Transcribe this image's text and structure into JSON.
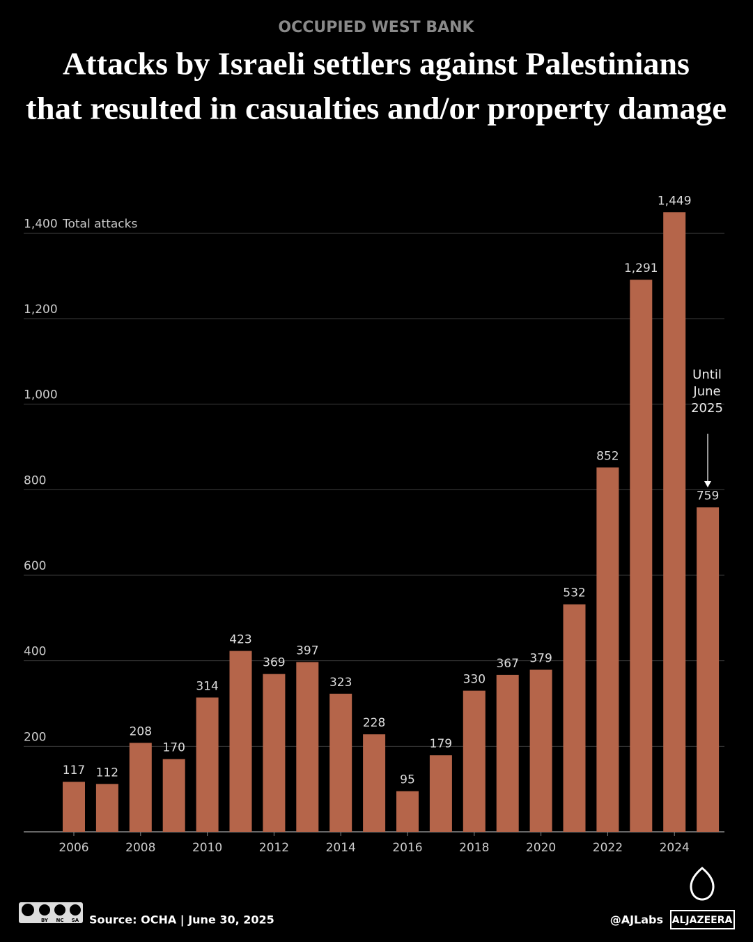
{
  "chart_data": {
    "type": "bar",
    "subtitle": "OCCUPIED WEST BANK",
    "title": [
      "Attacks by Israeli settlers against Palestinians",
      "that resulted in casualties and/or property damage"
    ],
    "y_axis_label": "Total attacks",
    "annotation": "Until June 2025",
    "categories": [
      "2006",
      null,
      "2008",
      null,
      "2010",
      null,
      "2012",
      null,
      "2014",
      null,
      "2016",
      null,
      "2018",
      null,
      "2020",
      null,
      "2022",
      null,
      "2024",
      null
    ],
    "values": [
      117,
      112,
      208,
      170,
      314,
      423,
      369,
      397,
      323,
      228,
      95,
      179,
      330,
      367,
      379,
      532,
      852,
      1291,
      1449,
      759
    ],
    "value_labels": [
      "117",
      "112",
      "208",
      "170",
      "314",
      "423",
      "369",
      "397",
      "323",
      "228",
      "95",
      "179",
      "330",
      "367",
      "379",
      "532",
      "852",
      "1,291",
      "1,449",
      "759"
    ],
    "color": "#b5654a",
    "ylim": [
      0,
      1500
    ],
    "yticks": [
      200,
      400,
      600,
      800,
      {
        "value": 1000,
        "label": "1,000"
      },
      {
        "value": 1200,
        "label": "1,200"
      },
      {
        "value": 1400,
        "label": "1,400"
      }
    ],
    "grid": true
  },
  "footer": {
    "source": "Source:  OCHA | June 30, 2025",
    "handle": "@AJLabs",
    "logo": "ALJAZEERA",
    "license": [
      "BY",
      "NC",
      "SA"
    ]
  }
}
